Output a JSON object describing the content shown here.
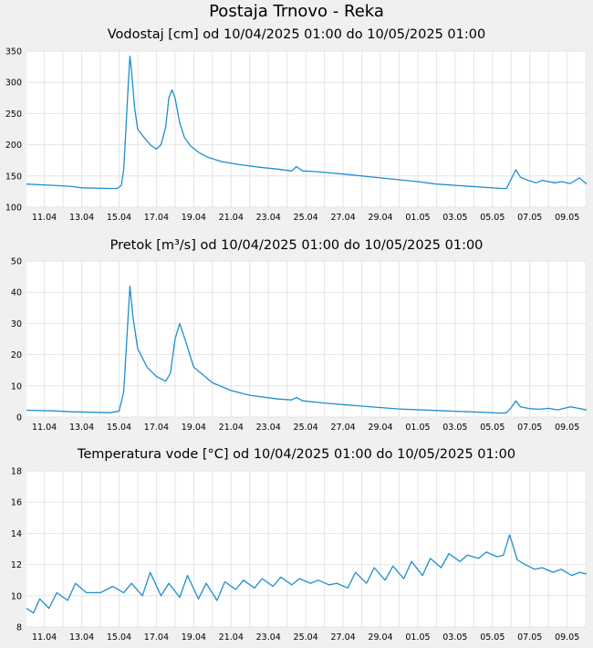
{
  "page": {
    "title": "Postaja Trnovo - Reka"
  },
  "style": {
    "line_color": "#1f8fcf",
    "plot_bg": "#ffffff",
    "grid_color": "#e4e4e4",
    "page_bg": "#f0f0f0"
  },
  "chart_data": [
    {
      "type": "line",
      "title": "Vodostaj [cm] od 10/04/2025 01:00 do 10/05/2025 01:00",
      "xlabel": "",
      "ylabel": "",
      "x_range": [
        "2025-04-10 01:00",
        "2025-05-10 01:00"
      ],
      "ylim": [
        100,
        350
      ],
      "yticks": [
        100,
        150,
        200,
        250,
        300,
        350
      ],
      "xtick_labels": [
        "11.04",
        "13.04",
        "15.04",
        "17.04",
        "19.04",
        "21.04",
        "23.04",
        "25.04",
        "27.04",
        "29.04",
        "01.05",
        "03.05",
        "05.05",
        "07.05",
        "09.05"
      ],
      "grid": true,
      "series": [
        {
          "x": [
            "2025-04-10 01:00",
            "2025-04-11 12:00",
            "2025-04-12 12:00",
            "2025-04-13 00:00",
            "2025-04-14 12:00",
            "2025-04-14 22:00",
            "2025-04-15 03:00",
            "2025-04-15 06:00",
            "2025-04-15 09:00",
            "2025-04-15 12:00",
            "2025-04-15 14:00",
            "2025-04-15 16:00",
            "2025-04-15 20:00",
            "2025-04-16 00:00",
            "2025-04-16 08:00",
            "2025-04-16 16:00",
            "2025-04-17 00:00",
            "2025-04-17 06:00",
            "2025-04-17 12:00",
            "2025-04-17 16:00",
            "2025-04-17 20:00",
            "2025-04-18 00:00",
            "2025-04-18 06:00",
            "2025-04-18 12:00",
            "2025-04-18 20:00",
            "2025-04-19 06:00",
            "2025-04-19 18:00",
            "2025-04-20 12:00",
            "2025-04-21 12:00",
            "2025-04-22 12:00",
            "2025-04-23 12:00",
            "2025-04-24 06:00",
            "2025-04-24 12:00",
            "2025-04-24 20:00",
            "2025-04-25 12:00",
            "2025-04-27 00:00",
            "2025-04-29 00:00",
            "2025-05-01 00:00",
            "2025-05-02 00:00",
            "2025-05-05 12:00",
            "2025-05-05 18:00",
            "2025-05-06 00:00",
            "2025-05-06 06:00",
            "2025-05-06 12:00",
            "2025-05-07 00:00",
            "2025-05-07 08:00",
            "2025-05-07 16:00",
            "2025-05-08 08:00",
            "2025-05-08 16:00",
            "2025-05-09 04:00",
            "2025-05-09 16:00",
            "2025-05-10 01:00"
          ],
          "values": [
            137,
            135,
            133,
            131,
            130,
            130,
            135,
            160,
            230,
            300,
            342,
            320,
            260,
            225,
            212,
            200,
            193,
            200,
            228,
            275,
            288,
            275,
            235,
            212,
            198,
            188,
            180,
            173,
            168,
            164,
            161,
            158,
            165,
            158,
            157,
            153,
            147,
            141,
            137,
            130,
            130,
            145,
            160,
            148,
            142,
            139,
            143,
            139,
            141,
            138,
            147,
            137
          ]
        }
      ]
    },
    {
      "type": "line",
      "title": "Pretok [m³/s] od 10/04/2025 01:00 do 10/05/2025 01:00",
      "xlabel": "",
      "ylabel": "",
      "x_range": [
        "2025-04-10 01:00",
        "2025-05-10 01:00"
      ],
      "ylim": [
        0,
        50
      ],
      "yticks": [
        0,
        10,
        20,
        30,
        40,
        50
      ],
      "xtick_labels": [
        "11.04",
        "13.04",
        "15.04",
        "17.04",
        "19.04",
        "21.04",
        "23.04",
        "25.04",
        "27.04",
        "29.04",
        "01.05",
        "03.05",
        "05.05",
        "07.05",
        "09.05"
      ],
      "grid": true,
      "series": [
        {
          "x": [
            "2025-04-10 01:00",
            "2025-04-11 12:00",
            "2025-04-12 12:00",
            "2025-04-14 12:00",
            "2025-04-15 00:00",
            "2025-04-15 06:00",
            "2025-04-15 10:00",
            "2025-04-15 14:00",
            "2025-04-15 18:00",
            "2025-04-16 00:00",
            "2025-04-16 12:00",
            "2025-04-17 00:00",
            "2025-04-17 12:00",
            "2025-04-17 18:00",
            "2025-04-18 00:00",
            "2025-04-18 06:00",
            "2025-04-18 14:00",
            "2025-04-19 00:00",
            "2025-04-20 00:00",
            "2025-04-21 00:00",
            "2025-04-22 00:00",
            "2025-04-23 12:00",
            "2025-04-24 06:00",
            "2025-04-24 12:00",
            "2025-04-24 20:00",
            "2025-04-26 00:00",
            "2025-04-28 00:00",
            "2025-04-30 00:00",
            "2025-05-02 00:00",
            "2025-05-05 12:00",
            "2025-05-05 18:00",
            "2025-05-06 00:00",
            "2025-05-06 06:00",
            "2025-05-06 12:00",
            "2025-05-07 00:00",
            "2025-05-07 12:00",
            "2025-05-08 00:00",
            "2025-05-08 12:00",
            "2025-05-09 04:00",
            "2025-05-10 01:00"
          ],
          "values": [
            2.2,
            2.0,
            1.7,
            1.4,
            1.9,
            8,
            25,
            42,
            32,
            22,
            16,
            13,
            11.5,
            14,
            25,
            30,
            24,
            16,
            11,
            8.5,
            7,
            5.8,
            5.5,
            6.3,
            5.2,
            4.5,
            3.5,
            2.6,
            2.1,
            1.3,
            1.4,
            3,
            5.2,
            3.3,
            2.7,
            2.5,
            2.8,
            2.3,
            3.3,
            2.3
          ]
        }
      ]
    },
    {
      "type": "line",
      "title": "Temperatura vode [°C] od 10/04/2025 01:00 do 10/05/2025 01:00",
      "xlabel": "",
      "ylabel": "",
      "x_range": [
        "2025-04-10 01:00",
        "2025-05-10 01:00"
      ],
      "ylim": [
        8,
        18
      ],
      "yticks": [
        8,
        10,
        12,
        14,
        16,
        18
      ],
      "xtick_labels": [
        "11.04",
        "13.04",
        "15.04",
        "17.04",
        "19.04",
        "21.04",
        "23.04",
        "25.04",
        "27.04",
        "29.04",
        "01.05",
        "03.05",
        "05.05",
        "07.05",
        "09.05"
      ],
      "grid": true,
      "series": [
        {
          "x": [
            "2025-04-10 01:00",
            "2025-04-10 10:00",
            "2025-04-10 18:00",
            "2025-04-11 06:00",
            "2025-04-11 16:00",
            "2025-04-12 06:00",
            "2025-04-12 16:00",
            "2025-04-13 06:00",
            "2025-04-14 00:00",
            "2025-04-14 16:00",
            "2025-04-15 06:00",
            "2025-04-15 16:00",
            "2025-04-16 06:00",
            "2025-04-16 16:00",
            "2025-04-17 06:00",
            "2025-04-17 16:00",
            "2025-04-18 06:00",
            "2025-04-18 16:00",
            "2025-04-19 06:00",
            "2025-04-19 16:00",
            "2025-04-20 06:00",
            "2025-04-20 16:00",
            "2025-04-21 06:00",
            "2025-04-21 16:00",
            "2025-04-22 06:00",
            "2025-04-22 16:00",
            "2025-04-23 06:00",
            "2025-04-23 16:00",
            "2025-04-24 06:00",
            "2025-04-24 16:00",
            "2025-04-25 06:00",
            "2025-04-25 16:00",
            "2025-04-26 06:00",
            "2025-04-26 16:00",
            "2025-04-27 06:00",
            "2025-04-27 16:00",
            "2025-04-28 06:00",
            "2025-04-28 16:00",
            "2025-04-29 06:00",
            "2025-04-29 16:00",
            "2025-04-30 06:00",
            "2025-04-30 16:00",
            "2025-05-01 06:00",
            "2025-05-01 16:00",
            "2025-05-02 06:00",
            "2025-05-02 16:00",
            "2025-05-03 06:00",
            "2025-05-03 16:00",
            "2025-05-04 06:00",
            "2025-05-04 16:00",
            "2025-05-05 06:00",
            "2025-05-05 14:00",
            "2025-05-05 22:00",
            "2025-05-06 08:00",
            "2025-05-06 18:00",
            "2025-05-07 06:00",
            "2025-05-07 16:00",
            "2025-05-08 06:00",
            "2025-05-08 16:00",
            "2025-05-09 06:00",
            "2025-05-09 16:00",
            "2025-05-10 01:00"
          ],
          "values": [
            9.2,
            8.9,
            9.8,
            9.2,
            10.2,
            9.7,
            10.8,
            10.2,
            10.2,
            10.6,
            10.2,
            10.8,
            10.0,
            11.5,
            10.0,
            10.8,
            9.9,
            11.3,
            9.8,
            10.8,
            9.7,
            10.9,
            10.4,
            11.0,
            10.5,
            11.1,
            10.6,
            11.2,
            10.7,
            11.1,
            10.8,
            11.0,
            10.7,
            10.8,
            10.5,
            11.5,
            10.8,
            11.8,
            11.0,
            11.9,
            11.1,
            12.2,
            11.3,
            12.4,
            11.8,
            12.7,
            12.2,
            12.6,
            12.4,
            12.8,
            12.5,
            12.6,
            13.9,
            12.3,
            12.0,
            11.7,
            11.8,
            11.5,
            11.7,
            11.3,
            11.5,
            11.4
          ]
        }
      ]
    }
  ]
}
